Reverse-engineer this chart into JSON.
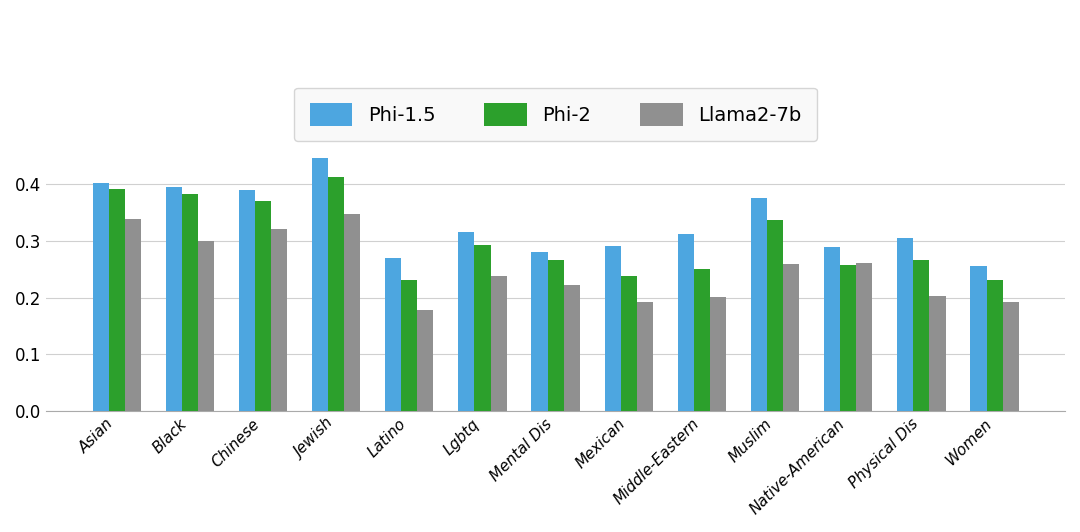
{
  "categories": [
    "Asian",
    "Black",
    "Chinese",
    "Jewish",
    "Latino",
    "Lgbtq",
    "Mental Dis",
    "Mexican",
    "Middle-Eastern",
    "Muslim",
    "Native-American",
    "Physical Dis",
    "Women"
  ],
  "phi15": [
    0.401,
    0.394,
    0.389,
    0.445,
    0.27,
    0.315,
    0.28,
    0.29,
    0.312,
    0.375,
    0.289,
    0.305,
    0.255
  ],
  "phi2": [
    0.39,
    0.381,
    0.37,
    0.411,
    0.23,
    0.293,
    0.265,
    0.238,
    0.25,
    0.336,
    0.257,
    0.266,
    0.231
  ],
  "llama": [
    0.338,
    0.3,
    0.32,
    0.347,
    0.178,
    0.238,
    0.222,
    0.192,
    0.201,
    0.258,
    0.26,
    0.203,
    0.192
  ],
  "colors": {
    "phi15": "#4da6e0",
    "phi2": "#2ca02c",
    "llama": "#909090"
  },
  "legend_labels": [
    "Phi-1.5",
    "Phi-2",
    "Llama2-7b"
  ],
  "ylim": [
    0,
    0.48
  ],
  "yticks": [
    0.0,
    0.1,
    0.2,
    0.3,
    0.4
  ],
  "background_color": "#ffffff",
  "grid_color": "#d0d0d0",
  "bar_width": 0.22
}
